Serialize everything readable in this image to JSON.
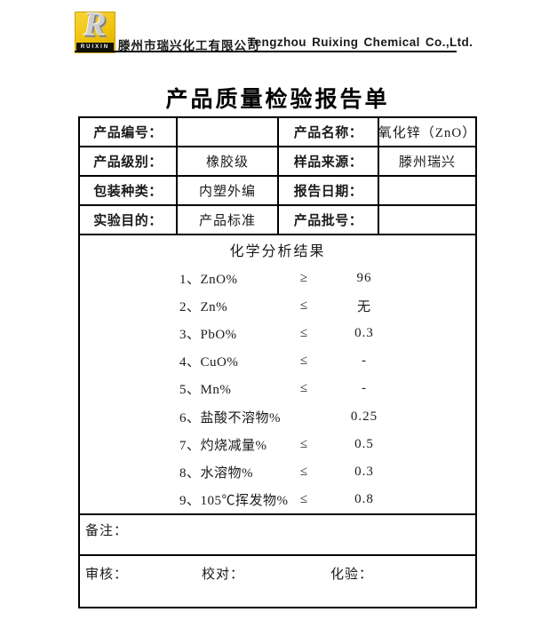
{
  "header": {
    "logo": {
      "letter": "R",
      "brand": "RUIXIN",
      "bg_color": "#F0C30A"
    },
    "company_cn": "滕州市瑞兴化工有限公司",
    "company_en": "Tengzhou Ruixing Chemical Co.,Ltd."
  },
  "title": "产品质量检验报告单",
  "info": {
    "rows": [
      {
        "label1": "产品编号：",
        "value1": "",
        "label2": "产品名称：",
        "value2": "氧化锌（ZnO）"
      },
      {
        "label1": "产品级别：",
        "value1": "橡胶级",
        "label2": "样品来源：",
        "value2": "滕州瑞兴"
      },
      {
        "label1": "包装种类：",
        "value1": "内塑外编",
        "label2": "报告日期：",
        "value2": ""
      },
      {
        "label1": "实验目的：",
        "value1": "产品标准",
        "label2": "产品批号：",
        "value2": ""
      }
    ]
  },
  "analysis": {
    "section_title": "化学分析结果",
    "items": [
      {
        "label": "1、ZnO%",
        "symbol": "≥",
        "value": "96"
      },
      {
        "label": "2、Zn%",
        "symbol": "≤",
        "value": "无"
      },
      {
        "label": "3、PbO%",
        "symbol": "≤",
        "value": "0.3"
      },
      {
        "label": "4、CuO%",
        "symbol": "≤",
        "value": "-"
      },
      {
        "label": "5、Mn%",
        "symbol": "≤",
        "value": "-"
      },
      {
        "label": "6、盐酸不溶物%",
        "symbol": "",
        "value": "0.25"
      },
      {
        "label": "7、灼烧减量%",
        "symbol": "≤",
        "value": "0.5"
      },
      {
        "label": "8、水溶物%",
        "symbol": "≤",
        "value": "0.3"
      },
      {
        "label": "9、105℃挥发物%",
        "symbol": "≤",
        "value": "0.8"
      }
    ]
  },
  "remarks": {
    "label": "备注："
  },
  "footer": {
    "reviewer_label": "审核：",
    "proofreader_label": "校对：",
    "tester_label": "化验："
  }
}
